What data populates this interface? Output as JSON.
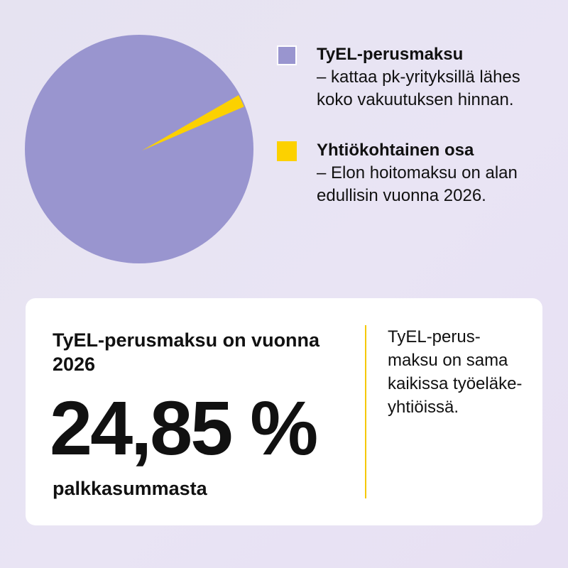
{
  "chart_data": {
    "type": "pie",
    "slices": [
      {
        "label": "TyEL-perusmaksu",
        "description": "– kattaa pk-yrityksillä lähes koko vakuutuksen hinnan.",
        "value": 96,
        "color": "#9995cf"
      },
      {
        "label": "Yhtiökohtainen osa",
        "description": "– Elon hoitomaksu on alan edullisin vuonna 2026.",
        "value": 4,
        "color": "#fcd100"
      }
    ]
  },
  "card": {
    "heading": "TyEL-perusmaksu on vuonna 2026",
    "value": "24,85 %",
    "unit": "palkkasummasta",
    "note": "TyEL-perus- maksu on sama kaikissa työeläke- yhtiöissä.",
    "divider_color": "#f5c800"
  }
}
